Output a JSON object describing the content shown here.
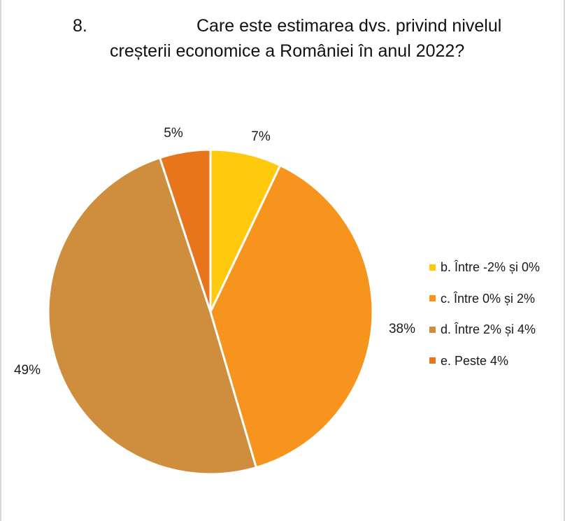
{
  "question_number": "8.",
  "title_line_1": "Care este estimarea dvs. privind nivelul",
  "title_line_2": "creșterii economice a României în anul 2022?",
  "chart_data": {
    "type": "pie",
    "title": "Care este estimarea dvs. privind nivelul creșterii economice a României în anul 2022?",
    "legend_position": "right",
    "slices": [
      {
        "label": "b. Între -2% și 0%",
        "value": 7,
        "value_label": "7%",
        "color": "#FFC90E"
      },
      {
        "label": "c. Între 0% și 2%",
        "value": 38,
        "value_label": "38%",
        "color": "#F7941D"
      },
      {
        "label": "d. Între 2% și 4%",
        "value": 49,
        "value_label": "49%",
        "color": "#CE8E3E"
      },
      {
        "label": "e. Peste 4%",
        "value": 5,
        "value_label": "5%",
        "color": "#E8741C"
      }
    ]
  }
}
